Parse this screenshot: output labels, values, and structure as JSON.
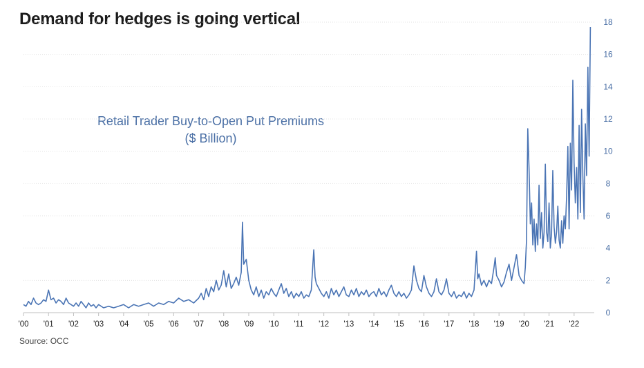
{
  "chart_data": {
    "type": "line",
    "title": "Demand for hedges is going vertical",
    "subtitle_line1": "Retail Trader Buy-to-Open Put Premiums",
    "subtitle_line2": "($ Billion)",
    "source": "Source: OCC",
    "y_axis_position": "right",
    "ylim": [
      0,
      18
    ],
    "y_ticks": [
      0,
      2,
      4,
      6,
      8,
      10,
      12,
      14,
      16,
      18
    ],
    "xlim": [
      2000,
      2022.75
    ],
    "x_ticks": [
      {
        "value": 2000,
        "label": "'00"
      },
      {
        "value": 2001,
        "label": "'01"
      },
      {
        "value": 2002,
        "label": "'02"
      },
      {
        "value": 2003,
        "label": "'03"
      },
      {
        "value": 2004,
        "label": "'04"
      },
      {
        "value": 2005,
        "label": "'05"
      },
      {
        "value": 2006,
        "label": "'06"
      },
      {
        "value": 2007,
        "label": "'07"
      },
      {
        "value": 2008,
        "label": "'08"
      },
      {
        "value": 2009,
        "label": "'09"
      },
      {
        "value": 2010,
        "label": "'10"
      },
      {
        "value": 2011,
        "label": "'11"
      },
      {
        "value": 2012,
        "label": "'12"
      },
      {
        "value": 2013,
        "label": "'13"
      },
      {
        "value": 2014,
        "label": "'14"
      },
      {
        "value": 2015,
        "label": "'15"
      },
      {
        "value": 2016,
        "label": "'16"
      },
      {
        "value": 2017,
        "label": "'17"
      },
      {
        "value": 2018,
        "label": "'18"
      },
      {
        "value": 2019,
        "label": "'19"
      },
      {
        "value": 2020,
        "label": "'20"
      },
      {
        "value": 2021,
        "label": "'21"
      },
      {
        "value": 2022,
        "label": "'22"
      }
    ],
    "grid": true,
    "line_color": "#4a74b4",
    "series": [
      {
        "points": [
          [
            2000.0,
            0.5
          ],
          [
            2000.1,
            0.4
          ],
          [
            2000.2,
            0.7
          ],
          [
            2000.3,
            0.5
          ],
          [
            2000.4,
            0.9
          ],
          [
            2000.5,
            0.6
          ],
          [
            2000.6,
            0.5
          ],
          [
            2000.7,
            0.6
          ],
          [
            2000.8,
            0.8
          ],
          [
            2000.9,
            0.7
          ],
          [
            2001.0,
            1.4
          ],
          [
            2001.1,
            0.8
          ],
          [
            2001.2,
            0.9
          ],
          [
            2001.3,
            0.6
          ],
          [
            2001.4,
            0.8
          ],
          [
            2001.5,
            0.7
          ],
          [
            2001.6,
            0.5
          ],
          [
            2001.7,
            0.9
          ],
          [
            2001.8,
            0.6
          ],
          [
            2001.9,
            0.5
          ],
          [
            2002.0,
            0.4
          ],
          [
            2002.1,
            0.6
          ],
          [
            2002.2,
            0.4
          ],
          [
            2002.3,
            0.7
          ],
          [
            2002.4,
            0.5
          ],
          [
            2002.5,
            0.3
          ],
          [
            2002.6,
            0.6
          ],
          [
            2002.7,
            0.4
          ],
          [
            2002.8,
            0.5
          ],
          [
            2002.9,
            0.3
          ],
          [
            2003.0,
            0.5
          ],
          [
            2003.2,
            0.3
          ],
          [
            2003.4,
            0.4
          ],
          [
            2003.6,
            0.3
          ],
          [
            2003.8,
            0.4
          ],
          [
            2004.0,
            0.5
          ],
          [
            2004.2,
            0.3
          ],
          [
            2004.4,
            0.5
          ],
          [
            2004.6,
            0.4
          ],
          [
            2004.8,
            0.5
          ],
          [
            2005.0,
            0.6
          ],
          [
            2005.2,
            0.4
          ],
          [
            2005.4,
            0.6
          ],
          [
            2005.6,
            0.5
          ],
          [
            2005.8,
            0.7
          ],
          [
            2006.0,
            0.6
          ],
          [
            2006.2,
            0.9
          ],
          [
            2006.4,
            0.7
          ],
          [
            2006.6,
            0.8
          ],
          [
            2006.8,
            0.6
          ],
          [
            2007.0,
            0.9
          ],
          [
            2007.1,
            1.2
          ],
          [
            2007.2,
            0.8
          ],
          [
            2007.3,
            1.5
          ],
          [
            2007.4,
            1.0
          ],
          [
            2007.5,
            1.6
          ],
          [
            2007.6,
            1.3
          ],
          [
            2007.7,
            2.0
          ],
          [
            2007.8,
            1.4
          ],
          [
            2007.9,
            1.7
          ],
          [
            2008.0,
            2.6
          ],
          [
            2008.1,
            1.6
          ],
          [
            2008.2,
            2.4
          ],
          [
            2008.3,
            1.5
          ],
          [
            2008.4,
            1.8
          ],
          [
            2008.5,
            2.2
          ],
          [
            2008.6,
            1.7
          ],
          [
            2008.7,
            2.5
          ],
          [
            2008.75,
            5.6
          ],
          [
            2008.8,
            3.0
          ],
          [
            2008.9,
            3.3
          ],
          [
            2009.0,
            2.0
          ],
          [
            2009.1,
            1.4
          ],
          [
            2009.2,
            1.1
          ],
          [
            2009.3,
            1.6
          ],
          [
            2009.4,
            1.0
          ],
          [
            2009.5,
            1.4
          ],
          [
            2009.6,
            0.9
          ],
          [
            2009.7,
            1.3
          ],
          [
            2009.8,
            1.1
          ],
          [
            2009.9,
            1.5
          ],
          [
            2010.0,
            1.2
          ],
          [
            2010.1,
            1.0
          ],
          [
            2010.2,
            1.4
          ],
          [
            2010.3,
            1.8
          ],
          [
            2010.4,
            1.2
          ],
          [
            2010.5,
            1.5
          ],
          [
            2010.6,
            1.0
          ],
          [
            2010.7,
            1.3
          ],
          [
            2010.8,
            0.9
          ],
          [
            2010.9,
            1.2
          ],
          [
            2011.0,
            1.0
          ],
          [
            2011.1,
            1.3
          ],
          [
            2011.2,
            0.9
          ],
          [
            2011.3,
            1.1
          ],
          [
            2011.4,
            1.0
          ],
          [
            2011.5,
            1.4
          ],
          [
            2011.6,
            3.9
          ],
          [
            2011.65,
            2.2
          ],
          [
            2011.7,
            1.8
          ],
          [
            2011.8,
            1.5
          ],
          [
            2011.9,
            1.2
          ],
          [
            2012.0,
            1.0
          ],
          [
            2012.1,
            1.3
          ],
          [
            2012.2,
            0.9
          ],
          [
            2012.3,
            1.5
          ],
          [
            2012.4,
            1.1
          ],
          [
            2012.5,
            1.4
          ],
          [
            2012.6,
            1.0
          ],
          [
            2012.7,
            1.3
          ],
          [
            2012.8,
            1.6
          ],
          [
            2012.9,
            1.1
          ],
          [
            2013.0,
            1.0
          ],
          [
            2013.1,
            1.4
          ],
          [
            2013.2,
            1.1
          ],
          [
            2013.3,
            1.5
          ],
          [
            2013.4,
            1.0
          ],
          [
            2013.5,
            1.3
          ],
          [
            2013.6,
            1.1
          ],
          [
            2013.7,
            1.4
          ],
          [
            2013.8,
            1.0
          ],
          [
            2013.9,
            1.2
          ],
          [
            2014.0,
            1.3
          ],
          [
            2014.1,
            1.0
          ],
          [
            2014.2,
            1.5
          ],
          [
            2014.3,
            1.1
          ],
          [
            2014.4,
            1.3
          ],
          [
            2014.5,
            1.0
          ],
          [
            2014.6,
            1.4
          ],
          [
            2014.7,
            1.7
          ],
          [
            2014.8,
            1.2
          ],
          [
            2014.9,
            1.0
          ],
          [
            2015.0,
            1.3
          ],
          [
            2015.1,
            1.0
          ],
          [
            2015.2,
            1.2
          ],
          [
            2015.3,
            0.9
          ],
          [
            2015.4,
            1.1
          ],
          [
            2015.5,
            1.4
          ],
          [
            2015.6,
            2.9
          ],
          [
            2015.7,
            2.0
          ],
          [
            2015.8,
            1.5
          ],
          [
            2015.9,
            1.3
          ],
          [
            2016.0,
            2.3
          ],
          [
            2016.1,
            1.6
          ],
          [
            2016.2,
            1.2
          ],
          [
            2016.3,
            1.0
          ],
          [
            2016.4,
            1.3
          ],
          [
            2016.5,
            2.1
          ],
          [
            2016.6,
            1.3
          ],
          [
            2016.7,
            1.1
          ],
          [
            2016.8,
            1.4
          ],
          [
            2016.9,
            2.1
          ],
          [
            2017.0,
            1.2
          ],
          [
            2017.1,
            1.0
          ],
          [
            2017.2,
            1.3
          ],
          [
            2017.3,
            0.9
          ],
          [
            2017.4,
            1.1
          ],
          [
            2017.5,
            1.0
          ],
          [
            2017.6,
            1.3
          ],
          [
            2017.7,
            0.9
          ],
          [
            2017.8,
            1.2
          ],
          [
            2017.9,
            1.0
          ],
          [
            2018.0,
            1.4
          ],
          [
            2018.1,
            3.8
          ],
          [
            2018.15,
            2.1
          ],
          [
            2018.2,
            2.4
          ],
          [
            2018.3,
            1.7
          ],
          [
            2018.4,
            2.0
          ],
          [
            2018.5,
            1.6
          ],
          [
            2018.6,
            2.0
          ],
          [
            2018.7,
            1.8
          ],
          [
            2018.8,
            2.8
          ],
          [
            2018.85,
            3.4
          ],
          [
            2018.9,
            2.3
          ],
          [
            2019.0,
            2.0
          ],
          [
            2019.1,
            1.6
          ],
          [
            2019.2,
            1.9
          ],
          [
            2019.3,
            2.5
          ],
          [
            2019.4,
            3.0
          ],
          [
            2019.5,
            2.0
          ],
          [
            2019.6,
            2.8
          ],
          [
            2019.7,
            3.6
          ],
          [
            2019.8,
            2.3
          ],
          [
            2019.9,
            2.0
          ],
          [
            2020.0,
            1.8
          ],
          [
            2020.05,
            2.8
          ],
          [
            2020.1,
            4.5
          ],
          [
            2020.15,
            11.4
          ],
          [
            2020.2,
            9.0
          ],
          [
            2020.25,
            5.5
          ],
          [
            2020.3,
            6.8
          ],
          [
            2020.35,
            4.2
          ],
          [
            2020.4,
            5.8
          ],
          [
            2020.45,
            3.8
          ],
          [
            2020.5,
            5.5
          ],
          [
            2020.55,
            4.2
          ],
          [
            2020.6,
            7.9
          ],
          [
            2020.65,
            4.6
          ],
          [
            2020.7,
            6.2
          ],
          [
            2020.75,
            4.0
          ],
          [
            2020.8,
            5.0
          ],
          [
            2020.85,
            9.2
          ],
          [
            2020.9,
            5.0
          ],
          [
            2020.95,
            4.4
          ],
          [
            2021.0,
            6.8
          ],
          [
            2021.05,
            4.0
          ],
          [
            2021.1,
            4.9
          ],
          [
            2021.15,
            8.8
          ],
          [
            2021.2,
            5.3
          ],
          [
            2021.25,
            4.3
          ],
          [
            2021.3,
            5.0
          ],
          [
            2021.35,
            6.6
          ],
          [
            2021.4,
            4.5
          ],
          [
            2021.45,
            4.0
          ],
          [
            2021.5,
            5.7
          ],
          [
            2021.55,
            4.3
          ],
          [
            2021.6,
            6.0
          ],
          [
            2021.65,
            5.2
          ],
          [
            2021.7,
            7.2
          ],
          [
            2021.75,
            10.3
          ],
          [
            2021.8,
            5.2
          ],
          [
            2021.85,
            10.5
          ],
          [
            2021.9,
            7.6
          ],
          [
            2021.95,
            14.4
          ],
          [
            2022.0,
            9.3
          ],
          [
            2022.05,
            6.8
          ],
          [
            2022.1,
            9.0
          ],
          [
            2022.15,
            5.8
          ],
          [
            2022.2,
            11.6
          ],
          [
            2022.25,
            6.2
          ],
          [
            2022.3,
            12.6
          ],
          [
            2022.35,
            8.5
          ],
          [
            2022.4,
            5.8
          ],
          [
            2022.45,
            11.7
          ],
          [
            2022.5,
            8.5
          ],
          [
            2022.55,
            15.2
          ],
          [
            2022.6,
            9.7
          ],
          [
            2022.65,
            17.7
          ]
        ]
      }
    ]
  }
}
